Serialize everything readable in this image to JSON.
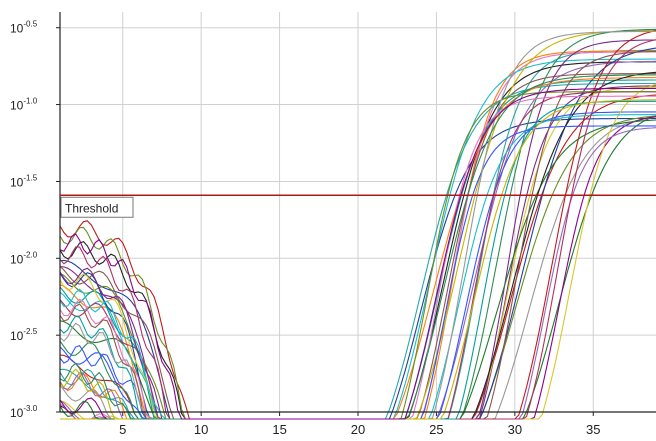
{
  "chart_data": {
    "type": "line",
    "title": "",
    "xlabel": "",
    "ylabel": "",
    "y_scale": "log",
    "xlim": [
      1,
      39
    ],
    "ylim": [
      0.001,
      0.4
    ],
    "grid": true,
    "x_ticks": [
      5,
      10,
      15,
      20,
      25,
      30,
      35
    ],
    "x_tick_labels": [
      "5",
      "10",
      "15",
      "20",
      "25",
      "30",
      "35"
    ],
    "y_ticks": [
      {
        "value": 0.316,
        "base": "10",
        "exp": "-0.5"
      },
      {
        "value": 0.1,
        "base": "10",
        "exp": "-1.0"
      },
      {
        "value": 0.0316,
        "base": "10",
        "exp": "-1.5"
      },
      {
        "value": 0.01,
        "base": "10",
        "exp": "-2.0"
      },
      {
        "value": 0.00316,
        "base": "10",
        "exp": "-2.5"
      },
      {
        "value": 0.001,
        "base": "10",
        "exp": "-3.0"
      }
    ],
    "threshold": {
      "label": "Threshold",
      "value": 0.0257,
      "color": "#b01818"
    },
    "curve_colors": [
      "#1f3f9e",
      "#2aa7a7",
      "#7a2a8c",
      "#c21a1a",
      "#1f7a2a",
      "#d8c829",
      "#ff7f0e",
      "#222222",
      "#6b8e23",
      "#9467bd",
      "#e377c2",
      "#17becf",
      "#8c564b",
      "#3355ff",
      "#b03060",
      "#00a0a0",
      "#999999",
      "#c8b400",
      "#2e8b57",
      "#8b008b"
    ],
    "series_count": 40,
    "curve_shape": "Cq crossings spread from about 21 to 31 cycles; plateau near 10^-0.4 to 10^-1.1; low-cycle baseline noise decays below 10^-3.0 by cycle 9–11"
  }
}
